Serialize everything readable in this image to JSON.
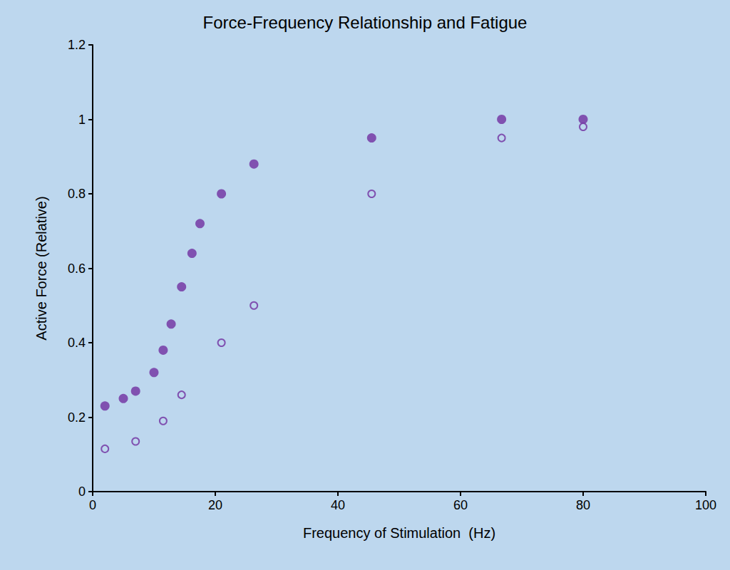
{
  "chart_data": {
    "type": "scatter",
    "title": "Force-Frequency Relationship and Fatigue",
    "x_label": "Frequency of Stimulation  (Hz)",
    "y_label": "Active Force (Relative)",
    "series": [
      {
        "color": "#7030a0",
        "marker": "filled_circle",
        "x": [
          2,
          5,
          7,
          10,
          11.5,
          12.8,
          14.5,
          16.2,
          17.5,
          21,
          26.3,
          45.5,
          66.7,
          80
        ],
        "values": [
          0.23,
          0.25,
          0.27,
          0.32,
          0.38,
          0.45,
          0.55,
          0.64,
          0.72,
          0.8,
          0.88,
          0.95,
          1.0,
          1.0
        ]
      },
      {
        "color": "#7030a0",
        "marker": "open_circle",
        "x": [
          2,
          7,
          11.5,
          14.5,
          21,
          26.3,
          45.5,
          66.7,
          80
        ],
        "values": [
          0.115,
          0.135,
          0.19,
          0.26,
          0.4,
          0.5,
          0.8,
          0.95,
          0.98
        ]
      }
    ],
    "xlim": [
      0,
      100
    ],
    "xticks": [
      0,
      20,
      40,
      60,
      80,
      100
    ],
    "ylim": [
      0,
      1.2
    ],
    "yticks": [
      0,
      0.2,
      0.4,
      0.6,
      0.8,
      1,
      1.2
    ],
    "grid": false
  }
}
